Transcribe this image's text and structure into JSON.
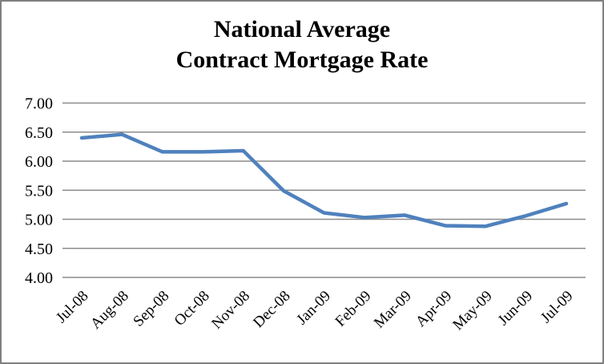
{
  "colors": {
    "line": "#4F81BD",
    "gridline": "#8C8C8C",
    "border": "#808080",
    "background": "#FFFFFF",
    "text": "#000000"
  },
  "chart_data": {
    "type": "line",
    "title": "National Average Contract Mortgage Rate",
    "title_line1": "National Average",
    "title_line2": "Contract Mortgage Rate",
    "categories": [
      "Jul-08",
      "Aug-08",
      "Sep-08",
      "Oct-08",
      "Nov-08",
      "Dec-08",
      "Jan-09",
      "Feb-09",
      "Mar-09",
      "Apr-09",
      "May-09",
      "Jun-09",
      "Jul-09"
    ],
    "series": [
      {
        "name": "National Average Contract Mortgage Rate",
        "values": [
          6.4,
          6.46,
          6.16,
          6.16,
          6.18,
          5.49,
          5.11,
          5.03,
          5.07,
          4.89,
          4.88,
          5.06,
          5.27
        ]
      }
    ],
    "xlabel": "",
    "ylabel": "",
    "ylim": [
      4.0,
      7.0
    ],
    "ytick_values": [
      7.0,
      6.5,
      6.0,
      5.5,
      5.0,
      4.5,
      4.0
    ],
    "ytick_labels": [
      "7.00",
      "6.50",
      "6.00",
      "5.50",
      "5.00",
      "4.50",
      "4.00"
    ],
    "grid": "horizontal",
    "legend": "none",
    "markers": "none",
    "x_tick_label_rotation_deg": 45
  }
}
